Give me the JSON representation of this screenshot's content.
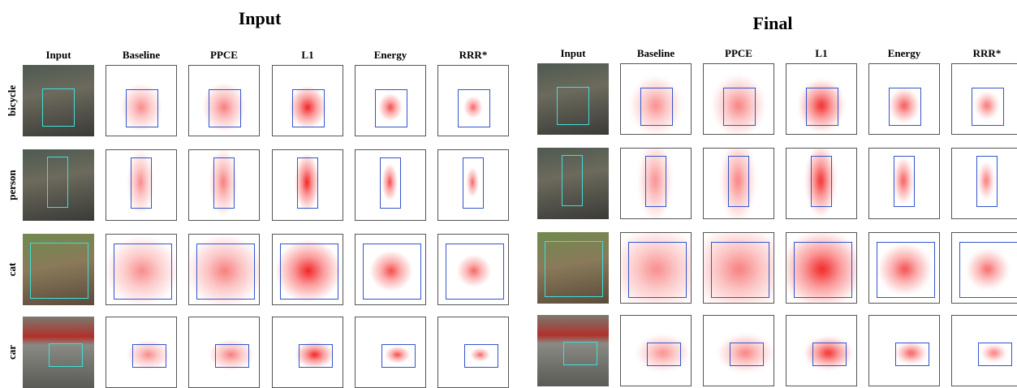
{
  "panels": [
    {
      "title": "Input",
      "columns": [
        "Input",
        "Baseline",
        "PPCE",
        "L1",
        "Energy",
        "RRR*"
      ],
      "rows": [
        "bicycle",
        "person",
        "cat",
        "car"
      ]
    },
    {
      "title": "Final",
      "columns": [
        "Input",
        "Baseline",
        "PPCE",
        "L1",
        "Energy",
        "RRR*"
      ],
      "rows": [
        "bicycle",
        "person",
        "cat",
        "car"
      ]
    }
  ]
}
